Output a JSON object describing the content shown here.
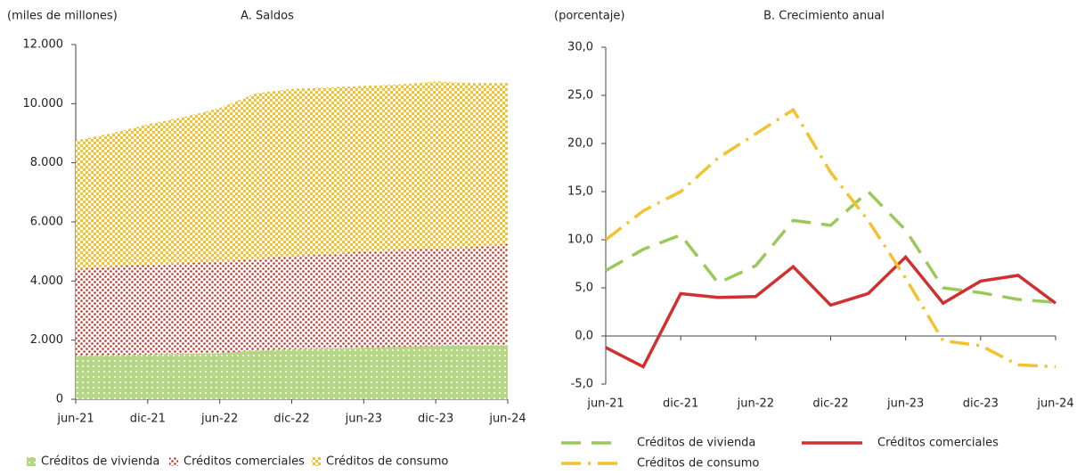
{
  "chart_data": [
    {
      "type": "stacked-area",
      "title": "A. Saldos",
      "y_label": "(miles de millones)",
      "categories": [
        "jun-21",
        null,
        "dic-21",
        null,
        "jun-22",
        null,
        "dic-22",
        null,
        "jun-23",
        null,
        "dic-23",
        null,
        "jun-24"
      ],
      "series": [
        {
          "name": "Créditos de vivienda",
          "color": "#9cc85a",
          "values": [
            1480,
            1500,
            1520,
            1540,
            1560,
            1650,
            1700,
            1720,
            1750,
            1780,
            1800,
            1820,
            1830
          ]
        },
        {
          "name": "Créditos comerciales",
          "color": "#c0392b",
          "values": [
            2920,
            3000,
            3030,
            3060,
            3090,
            3100,
            3150,
            3180,
            3250,
            3270,
            3300,
            3330,
            3420
          ]
        },
        {
          "name": "Créditos de consumo",
          "color": "#f2c232",
          "values": [
            4350,
            4500,
            4750,
            4950,
            5200,
            5600,
            5650,
            5650,
            5600,
            5600,
            5650,
            5550,
            5450
          ]
        }
      ],
      "ylim": [
        0,
        12000
      ],
      "yticks": [
        0,
        {
          "value": 2000,
          "label": "2.000"
        },
        {
          "value": 4000,
          "label": "4.000"
        },
        {
          "value": 6000,
          "label": "6.000"
        },
        {
          "value": 8000,
          "label": "8.000"
        },
        {
          "value": 10000,
          "label": "10.000"
        },
        {
          "value": 12000,
          "label": "12.000"
        }
      ]
    },
    {
      "type": "line",
      "title": "B. Crecimiento anual",
      "y_label": "(porcentaje)",
      "categories": [
        "jun-21",
        null,
        "dic-21",
        null,
        "jun-22",
        null,
        "dic-22",
        null,
        "jun-23",
        null,
        "dic-23",
        null,
        "jun-24"
      ],
      "series": [
        {
          "name": "Créditos de vivienda",
          "color": "#9cc85a",
          "dash": "22 12",
          "values": [
            6.8,
            9,
            10.5,
            5.5,
            7.3,
            12,
            11.5,
            15,
            11,
            5,
            4.5,
            3.8,
            3.5
          ]
        },
        {
          "name": "Créditos comerciales",
          "color": "#d03030",
          "dash": "none",
          "values": [
            -1.2,
            -3.2,
            4.4,
            4.0,
            4.1,
            7.2,
            3.2,
            4.4,
            8.2,
            3.4,
            5.7,
            6.3,
            3.4
          ]
        },
        {
          "name": "Créditos de consumo",
          "color": "#f2c232",
          "dash": "22 8 3 8",
          "values": [
            10,
            13,
            15,
            18.5,
            21,
            23.5,
            17,
            12,
            6,
            -0.5,
            -1,
            -3,
            -3.2
          ]
        }
      ],
      "ylim": [
        -5,
        30
      ],
      "yticks": [
        {
          "value": -5,
          "label": "-5,0"
        },
        {
          "value": 0,
          "label": "0,0"
        },
        {
          "value": 5,
          "label": "5,0"
        },
        {
          "value": 10,
          "label": "10,0"
        },
        {
          "value": 15,
          "label": "15,0"
        },
        {
          "value": 20,
          "label": "20,0"
        },
        {
          "value": 25,
          "label": "25,0"
        },
        {
          "value": 30,
          "label": "30,0"
        }
      ]
    }
  ]
}
